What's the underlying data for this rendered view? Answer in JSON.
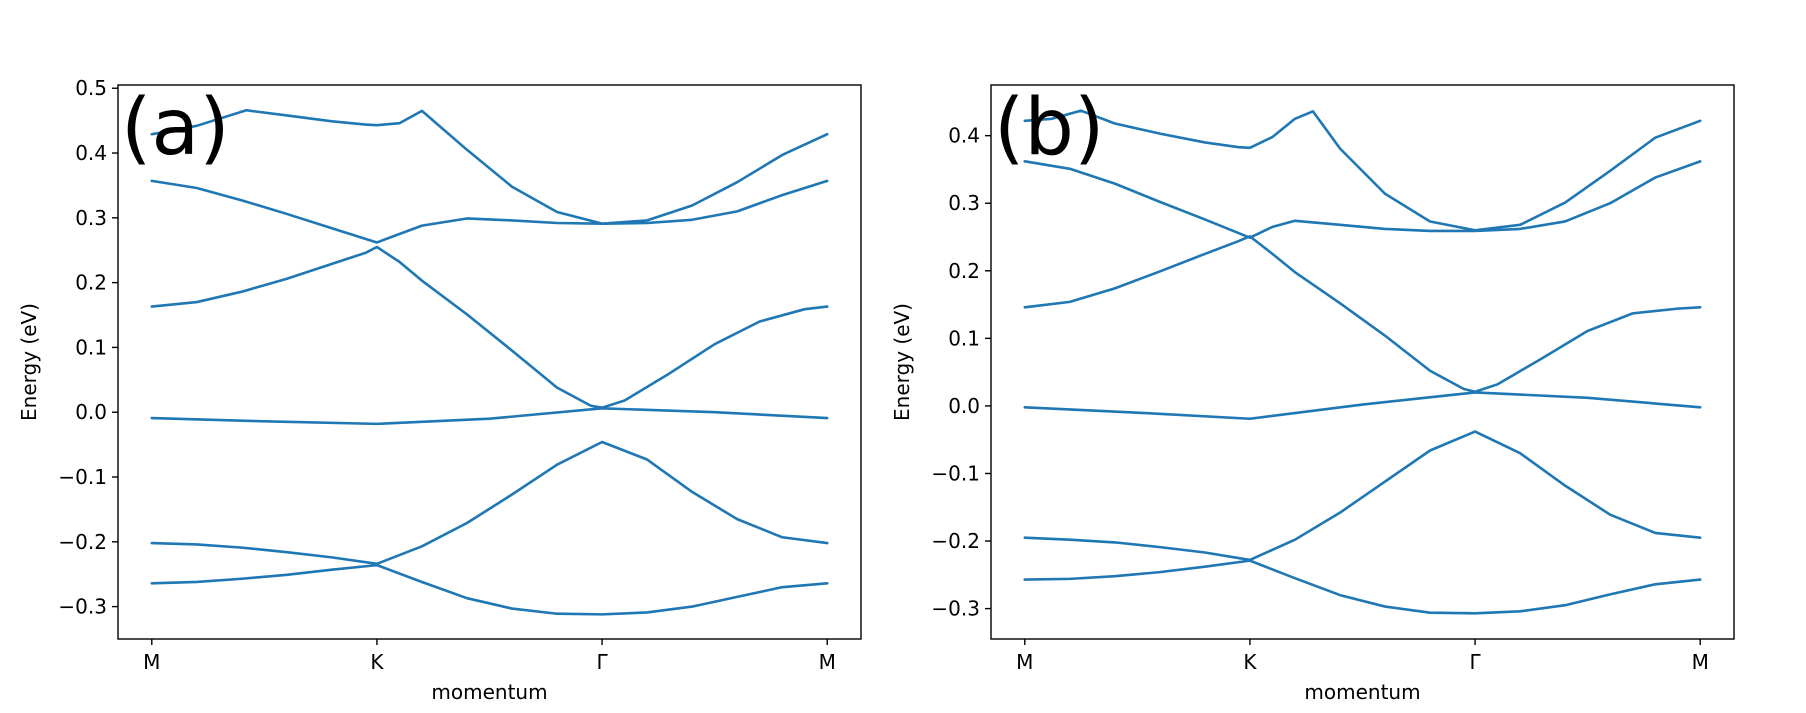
{
  "line_color": "#1f77b4",
  "chart_data": [
    {
      "type": "line",
      "panel_label": "(a)",
      "xlabel": "momentum",
      "ylabel": "Energy (eV)",
      "xticks": [
        {
          "label": "M",
          "x": 0
        },
        {
          "label": "K",
          "x": 1
        },
        {
          "label": "Γ",
          "x": 2
        },
        {
          "label": "M",
          "x": 3
        }
      ],
      "yticks": [
        -0.3,
        -0.2,
        -0.1,
        0.0,
        0.1,
        0.2,
        0.3,
        0.4,
        0.5
      ],
      "ytick_labels": [
        "−0.3",
        "−0.2",
        "−0.1",
        "0.0",
        "0.1",
        "0.2",
        "0.3",
        "0.4",
        "0.5"
      ],
      "xlim": [
        -0.15,
        3.15
      ],
      "ylim": [
        -0.35,
        0.505
      ],
      "series": [
        {
          "x": [
            0,
            0.2,
            0.42,
            0.6,
            0.8,
            0.95,
            1,
            1.1,
            1.2,
            1.4,
            1.6,
            1.8,
            2,
            2.2,
            2.4,
            2.6,
            2.8,
            3
          ],
          "y": [
            0.429,
            0.442,
            0.466,
            0.458,
            0.449,
            0.444,
            0.443,
            0.446,
            0.465,
            0.405,
            0.348,
            0.309,
            0.291,
            0.296,
            0.319,
            0.355,
            0.397,
            0.429
          ]
        },
        {
          "x": [
            0,
            0.2,
            0.4,
            0.6,
            0.8,
            1,
            1.1,
            1.2,
            1.4,
            1.6,
            1.8,
            2,
            2.2,
            2.4,
            2.6,
            2.8,
            3
          ],
          "y": [
            0.357,
            0.346,
            0.327,
            0.306,
            0.284,
            0.262,
            0.275,
            0.288,
            0.299,
            0.296,
            0.292,
            0.291,
            0.292,
            0.297,
            0.31,
            0.335,
            0.357
          ]
        },
        {
          "x": [
            0,
            0.2,
            0.4,
            0.6,
            0.8,
            0.95,
            1,
            1.1,
            1.2,
            1.4,
            1.6,
            1.8,
            1.95,
            2,
            2.1,
            2.3,
            2.5,
            2.7,
            2.9,
            3
          ],
          "y": [
            0.163,
            0.17,
            0.186,
            0.206,
            0.229,
            0.246,
            0.255,
            0.232,
            0.203,
            0.151,
            0.095,
            0.038,
            0.01,
            0.007,
            0.018,
            0.06,
            0.105,
            0.14,
            0.159,
            0.163
          ]
        },
        {
          "x": [
            0,
            0.5,
            1,
            1.5,
            2,
            2.5,
            3
          ],
          "y": [
            -0.009,
            -0.014,
            -0.018,
            -0.01,
            0.006,
            0.0,
            -0.009
          ]
        },
        {
          "x": [
            0,
            0.2,
            0.4,
            0.6,
            0.8,
            1,
            1.2,
            1.4,
            1.6,
            1.8,
            2,
            2.2,
            2.4,
            2.6,
            2.8,
            3
          ],
          "y": [
            -0.202,
            -0.204,
            -0.209,
            -0.216,
            -0.224,
            -0.234,
            -0.207,
            -0.171,
            -0.127,
            -0.081,
            -0.046,
            -0.073,
            -0.123,
            -0.165,
            -0.193,
            -0.202
          ]
        },
        {
          "x": [
            0,
            0.2,
            0.4,
            0.6,
            0.8,
            1,
            1.2,
            1.4,
            1.6,
            1.8,
            2,
            2.2,
            2.4,
            2.6,
            2.8,
            3
          ],
          "y": [
            -0.264,
            -0.262,
            -0.257,
            -0.251,
            -0.243,
            -0.236,
            -0.262,
            -0.287,
            -0.303,
            -0.311,
            -0.312,
            -0.309,
            -0.3,
            -0.285,
            -0.27,
            -0.264
          ]
        }
      ]
    },
    {
      "type": "line",
      "panel_label": "(b)",
      "xlabel": "momentum",
      "ylabel": "Energy (eV)",
      "xticks": [
        {
          "label": "M",
          "x": 0
        },
        {
          "label": "K",
          "x": 1
        },
        {
          "label": "Γ",
          "x": 2
        },
        {
          "label": "M",
          "x": 3
        }
      ],
      "yticks": [
        -0.3,
        -0.2,
        -0.1,
        0.0,
        0.1,
        0.2,
        0.3,
        0.4
      ],
      "ytick_labels": [
        "−0.3",
        "−0.2",
        "−0.1",
        "0.0",
        "0.1",
        "0.2",
        "0.3",
        "0.4"
      ],
      "xlim": [
        -0.15,
        3.15
      ],
      "ylim": [
        -0.345,
        0.475
      ],
      "series": [
        {
          "x": [
            0,
            0.12,
            0.25,
            0.4,
            0.6,
            0.8,
            0.95,
            1,
            1.1,
            1.2,
            1.28,
            1.4,
            1.6,
            1.8,
            2,
            2.2,
            2.4,
            2.6,
            2.8,
            3
          ],
          "y": [
            0.422,
            0.425,
            0.437,
            0.418,
            0.403,
            0.39,
            0.383,
            0.382,
            0.398,
            0.425,
            0.436,
            0.381,
            0.314,
            0.273,
            0.26,
            0.268,
            0.301,
            0.348,
            0.397,
            0.422
          ]
        },
        {
          "x": [
            0,
            0.2,
            0.4,
            0.6,
            0.8,
            1,
            1.1,
            1.2,
            1.4,
            1.6,
            1.8,
            2,
            2.2,
            2.4,
            2.6,
            2.8,
            3
          ],
          "y": [
            0.362,
            0.351,
            0.329,
            0.302,
            0.276,
            0.249,
            0.265,
            0.274,
            0.268,
            0.262,
            0.259,
            0.259,
            0.262,
            0.273,
            0.3,
            0.338,
            0.362
          ]
        },
        {
          "x": [
            0,
            0.2,
            0.4,
            0.6,
            0.8,
            0.95,
            1,
            1.1,
            1.2,
            1.4,
            1.6,
            1.8,
            1.95,
            2,
            2.1,
            2.3,
            2.5,
            2.7,
            2.9,
            3
          ],
          "y": [
            0.146,
            0.154,
            0.174,
            0.199,
            0.225,
            0.244,
            0.251,
            0.225,
            0.198,
            0.152,
            0.104,
            0.052,
            0.025,
            0.021,
            0.032,
            0.071,
            0.111,
            0.137,
            0.144,
            0.146
          ]
        },
        {
          "x": [
            0,
            0.5,
            1,
            1.5,
            2,
            2.5,
            3
          ],
          "y": [
            -0.002,
            -0.01,
            -0.019,
            0.002,
            0.02,
            0.012,
            -0.002
          ]
        },
        {
          "x": [
            0,
            0.2,
            0.4,
            0.6,
            0.8,
            1,
            1.2,
            1.4,
            1.6,
            1.8,
            2,
            2.2,
            2.4,
            2.6,
            2.8,
            3
          ],
          "y": [
            -0.195,
            -0.198,
            -0.202,
            -0.209,
            -0.217,
            -0.228,
            -0.198,
            -0.158,
            -0.112,
            -0.066,
            -0.038,
            -0.07,
            -0.118,
            -0.161,
            -0.188,
            -0.195
          ]
        },
        {
          "x": [
            0,
            0.2,
            0.4,
            0.6,
            0.8,
            1,
            1.2,
            1.4,
            1.6,
            1.8,
            2,
            2.2,
            2.4,
            2.6,
            2.8,
            3
          ],
          "y": [
            -0.257,
            -0.256,
            -0.252,
            -0.246,
            -0.238,
            -0.229,
            -0.255,
            -0.28,
            -0.297,
            -0.306,
            -0.307,
            -0.304,
            -0.295,
            -0.279,
            -0.264,
            -0.257
          ]
        }
      ]
    }
  ]
}
